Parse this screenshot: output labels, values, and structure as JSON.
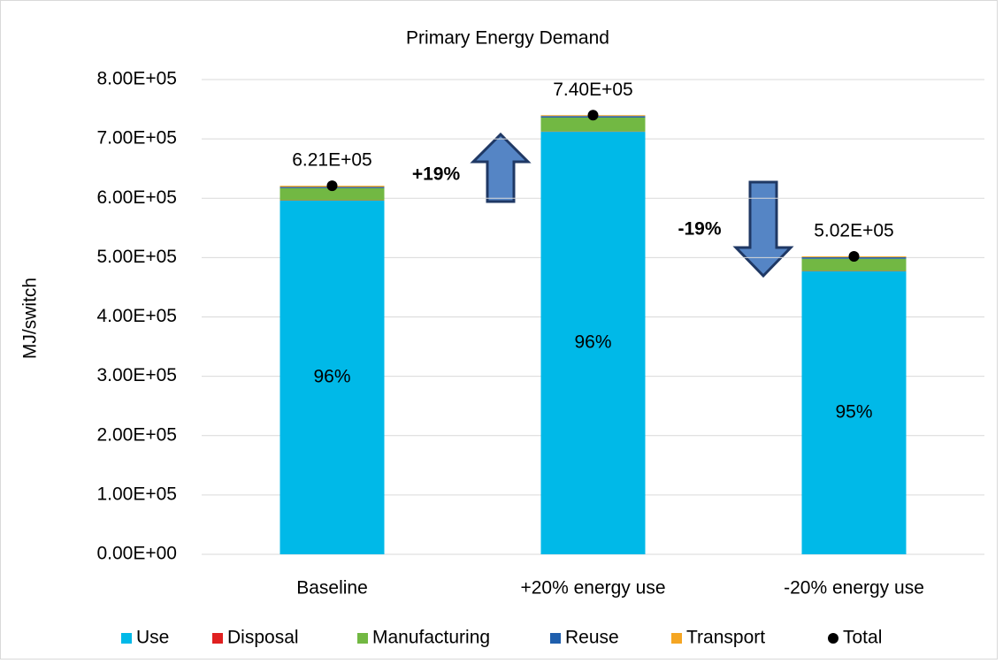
{
  "chart_data": {
    "type": "bar",
    "stacked": true,
    "title": "Primary Energy Demand",
    "y_label": "MJ/switch",
    "categories": [
      "Baseline",
      "+20% energy use",
      "-20% energy use"
    ],
    "series": [
      {
        "name": "Use",
        "color": "#00b9e8",
        "values": [
          596000,
          712000,
          477000
        ],
        "share_labels": [
          "96%",
          "96%",
          "95%"
        ]
      },
      {
        "name": "Disposal",
        "color": "#e02020",
        "values": [
          500,
          500,
          500
        ]
      },
      {
        "name": "Manufacturing",
        "color": "#72b843",
        "values": [
          20500,
          23500,
          20500
        ]
      },
      {
        "name": "Reuse",
        "color": "#1f5fad",
        "values": [
          2000,
          2500,
          2500
        ]
      },
      {
        "name": "Transport",
        "color": "#f5a623",
        "values": [
          2000,
          1500,
          1500
        ]
      },
      {
        "name": "Total",
        "type": "point",
        "color": "#000000",
        "values": [
          621000,
          740000,
          502000
        ],
        "value_labels": [
          "6.21E+05",
          "7.40E+05",
          "5.02E+05"
        ]
      }
    ],
    "ylim": [
      0,
      800000
    ],
    "yticks": [
      {
        "value": 0,
        "label": "0.00E+00"
      },
      {
        "value": 100000,
        "label": "1.00E+05"
      },
      {
        "value": 200000,
        "label": "2.00E+05"
      },
      {
        "value": 300000,
        "label": "3.00E+05"
      },
      {
        "value": 400000,
        "label": "4.00E+05"
      },
      {
        "value": 500000,
        "label": "5.00E+05"
      },
      {
        "value": 600000,
        "label": "6.00E+05"
      },
      {
        "value": 700000,
        "label": "7.00E+05"
      },
      {
        "value": 800000,
        "label": "8.00E+05"
      }
    ],
    "grid": true,
    "legend": "bottom",
    "annotations": [
      "+19%",
      "-19%"
    ]
  }
}
